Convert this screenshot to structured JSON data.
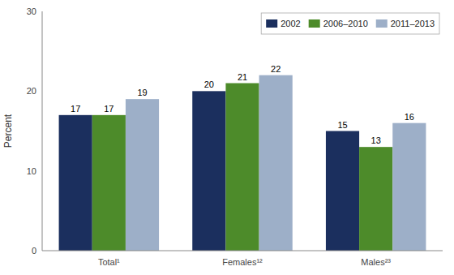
{
  "chart_data": {
    "type": "bar",
    "categories": [
      "Total¹",
      "Females¹²",
      "Males²³"
    ],
    "series": [
      {
        "name": "2002",
        "color": "#1b2f5e",
        "values": [
          17,
          20,
          15
        ]
      },
      {
        "name": "2006–2010",
        "color": "#4d8b2a",
        "values": [
          17,
          21,
          13
        ]
      },
      {
        "name": "2011–2013",
        "color": "#9dafc8",
        "values": [
          19,
          22,
          16
        ]
      }
    ],
    "ylabel": "Percent",
    "ylim": [
      0,
      30
    ],
    "yticks": [
      0,
      10,
      20,
      30
    ],
    "grid": false,
    "legend": "upper right",
    "data_labels": true
  }
}
